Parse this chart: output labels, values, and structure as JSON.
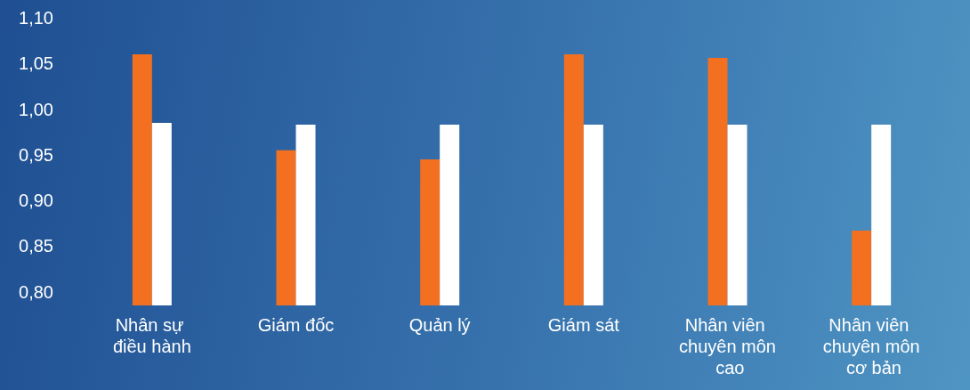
{
  "chart_data": {
    "type": "bar",
    "categories": [
      "Nhân sự điều hành",
      "Giám đốc",
      "Quản lý",
      "Giám sát",
      "Nhân viên chuyên môn cao",
      "Nhân viên chuyên môn cơ bản"
    ],
    "series": [
      {
        "color": "#f37021",
        "values": [
          1.06,
          0.955,
          0.945,
          1.06,
          1.056,
          0.867
        ]
      },
      {
        "color": "#ffffff",
        "values": [
          0.985,
          0.983,
          0.983,
          0.983,
          0.983,
          0.983
        ]
      }
    ],
    "ylim": [
      0.785,
      1.1
    ],
    "yticks": [
      {
        "value": 0.8,
        "label": "0,80"
      },
      {
        "value": 0.85,
        "label": "0,85"
      },
      {
        "value": 0.9,
        "label": "0,90"
      },
      {
        "value": 0.95,
        "label": "0,95"
      },
      {
        "value": 1.0,
        "label": "1,00"
      },
      {
        "value": 1.05,
        "label": "1,05"
      },
      {
        "value": 1.1,
        "label": "1,10"
      }
    ],
    "grid": false
  }
}
